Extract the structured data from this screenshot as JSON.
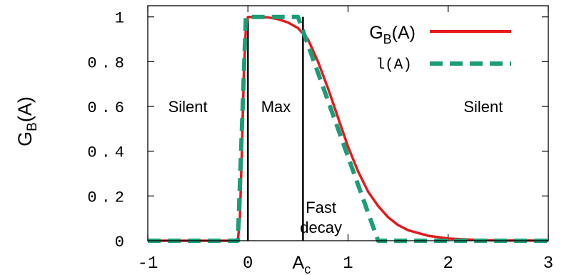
{
  "chart_data": {
    "type": "line",
    "ylabel": "G",
    "ylabel_sub": "B",
    "ylabel_suffix": "(A)",
    "xlim": [
      -1,
      3
    ],
    "ylim": [
      0,
      1.05
    ],
    "x_ticks": [
      "-1",
      "0",
      "1",
      "2",
      "3"
    ],
    "x_tick_values": [
      -1,
      0,
      1,
      2,
      3
    ],
    "y_ticks": [
      "0",
      "0.2",
      "0.4",
      "0.6",
      "0.8",
      "1"
    ],
    "y_tick_values": [
      0,
      0.2,
      0.4,
      0.6,
      0.8,
      1
    ],
    "ac_label": "A",
    "ac_sub": "c",
    "ac_value": 0.55,
    "zero_line_x": 0,
    "grid": false,
    "legend_position": "top-right",
    "series": [
      {
        "name_main": "G",
        "name_sub": "B",
        "name_suffix": "(A)",
        "color": "#e41a1c",
        "style": "solid",
        "x": [
          -1,
          -0.1,
          -0.08,
          -0.06,
          -0.04,
          -0.02,
          0,
          0.1,
          0.2,
          0.3,
          0.4,
          0.5,
          0.6,
          0.7,
          0.8,
          0.9,
          1.0,
          1.1,
          1.2,
          1.3,
          1.4,
          1.5,
          1.6,
          1.8,
          2.0,
          2.2,
          2.4,
          2.6,
          2.8,
          3.0
        ],
        "y": [
          0,
          0,
          0.1,
          0.4,
          0.75,
          0.95,
          1.0,
          1.0,
          0.998,
          0.99,
          0.975,
          0.95,
          0.9,
          0.8,
          0.68,
          0.55,
          0.42,
          0.31,
          0.22,
          0.155,
          0.105,
          0.07,
          0.047,
          0.022,
          0.01,
          0.005,
          0.002,
          0.001,
          0.0005,
          0
        ]
      },
      {
        "name": "l(A)",
        "color": "#1b9e77",
        "style": "dashed",
        "x": [
          -1,
          -0.1,
          -0.02,
          0.5,
          1.3,
          3
        ],
        "y": [
          0,
          0,
          1,
          1,
          0,
          0
        ]
      }
    ],
    "annotations": [
      {
        "text": "Silent",
        "x": -0.6,
        "y": 0.6
      },
      {
        "text": "Max",
        "x": 0.28,
        "y": 0.6
      },
      {
        "text": "Silent",
        "x": 2.35,
        "y": 0.6
      },
      {
        "text": "Fast",
        "x": 0.73,
        "y": 0.15
      },
      {
        "text": "decay",
        "x": 0.73,
        "y": 0.06
      }
    ]
  }
}
